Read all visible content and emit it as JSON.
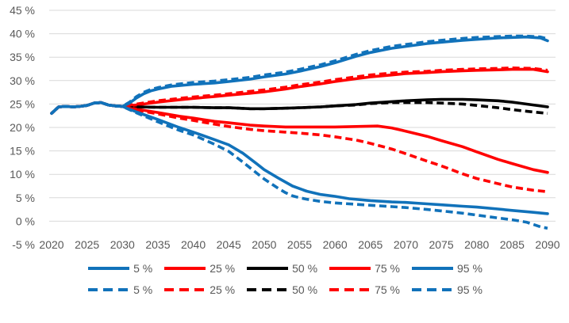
{
  "page": {
    "background": "#FFFFFF"
  },
  "chart_data": {
    "type": "line",
    "title": "",
    "xlabel": "",
    "ylabel": "",
    "grid": {
      "show": true,
      "color": "#D9D9D9",
      "levels": [
        45,
        40,
        35,
        30,
        25,
        20,
        15,
        10,
        5,
        0
      ]
    },
    "colors": {
      "blue": "#1172BA",
      "red": "#FF0000",
      "black": "#000000",
      "axis_text": "#595959"
    },
    "x_axis": {
      "min": 2020,
      "max": 2090,
      "tick_labels": [
        "2020",
        "2025",
        "2030",
        "2035",
        "2040",
        "2045",
        "2050",
        "2055",
        "2060",
        "2065",
        "2070",
        "2075",
        "2080",
        "2085",
        "2090"
      ]
    },
    "y_axis": {
      "min": -5,
      "max": 45,
      "tick_step": 5,
      "ticks": [
        {
          "v": 45,
          "label": "45 %"
        },
        {
          "v": 40,
          "label": "40 %"
        },
        {
          "v": 35,
          "label": "35 %"
        },
        {
          "v": 30,
          "label": "30 %"
        },
        {
          "v": 25,
          "label": "25 %"
        },
        {
          "v": 20,
          "label": "20 %"
        },
        {
          "v": 15,
          "label": "15 %"
        },
        {
          "v": 10,
          "label": "10 %"
        },
        {
          "v": 5,
          "label": "5 %"
        },
        {
          "v": 0,
          "label": "0 %"
        },
        {
          "v": -5,
          "label": "-5 %"
        }
      ]
    },
    "legend_position": "bottom-two-rows",
    "common_start": [
      [
        2020,
        23.0
      ],
      [
        2021,
        24.4
      ],
      [
        2022,
        24.5
      ],
      [
        2023,
        24.4
      ],
      [
        2024,
        24.5
      ],
      [
        2025,
        24.7
      ],
      [
        2026,
        25.2
      ],
      [
        2027,
        25.3
      ],
      [
        2028,
        24.8
      ],
      [
        2029,
        24.6
      ],
      [
        2030,
        24.5
      ]
    ],
    "series": [
      {
        "id": "p5_solid",
        "name": "5 %",
        "color": "#1172BA",
        "style": "solid",
        "points": [
          [
            2032,
            23.3
          ],
          [
            2035,
            21.7
          ],
          [
            2038,
            20.0
          ],
          [
            2040,
            19.0
          ],
          [
            2043,
            17.4
          ],
          [
            2045,
            16.3
          ],
          [
            2047,
            14.5
          ],
          [
            2049,
            12.2
          ],
          [
            2050,
            11.0
          ],
          [
            2052,
            9.2
          ],
          [
            2054,
            7.5
          ],
          [
            2056,
            6.4
          ],
          [
            2058,
            5.7
          ],
          [
            2060,
            5.3
          ],
          [
            2062,
            4.8
          ],
          [
            2065,
            4.4
          ],
          [
            2068,
            4.1
          ],
          [
            2070,
            4.0
          ],
          [
            2073,
            3.7
          ],
          [
            2075,
            3.5
          ],
          [
            2078,
            3.2
          ],
          [
            2080,
            3.0
          ],
          [
            2083,
            2.6
          ],
          [
            2085,
            2.3
          ],
          [
            2088,
            1.9
          ],
          [
            2090,
            1.6
          ]
        ]
      },
      {
        "id": "p25_solid",
        "name": "25 %",
        "color": "#FF0000",
        "style": "solid",
        "points": [
          [
            2032,
            23.9
          ],
          [
            2035,
            23.2
          ],
          [
            2038,
            22.4
          ],
          [
            2040,
            22.0
          ],
          [
            2043,
            21.3
          ],
          [
            2045,
            21.0
          ],
          [
            2048,
            20.5
          ],
          [
            2050,
            20.3
          ],
          [
            2053,
            20.1
          ],
          [
            2055,
            20.1
          ],
          [
            2058,
            20.1
          ],
          [
            2060,
            20.1
          ],
          [
            2063,
            20.2
          ],
          [
            2066,
            20.3
          ],
          [
            2068,
            19.9
          ],
          [
            2070,
            19.2
          ],
          [
            2073,
            18.1
          ],
          [
            2075,
            17.2
          ],
          [
            2078,
            15.9
          ],
          [
            2080,
            14.8
          ],
          [
            2083,
            13.2
          ],
          [
            2085,
            12.3
          ],
          [
            2088,
            11.0
          ],
          [
            2090,
            10.4
          ]
        ]
      },
      {
        "id": "p50_solid",
        "name": "50 %",
        "color": "#000000",
        "style": "solid",
        "points": [
          [
            2032,
            24.4
          ],
          [
            2035,
            24.3
          ],
          [
            2038,
            24.3
          ],
          [
            2040,
            24.3
          ],
          [
            2043,
            24.2
          ],
          [
            2045,
            24.2
          ],
          [
            2048,
            24.0
          ],
          [
            2050,
            24.0
          ],
          [
            2053,
            24.1
          ],
          [
            2055,
            24.2
          ],
          [
            2058,
            24.4
          ],
          [
            2060,
            24.6
          ],
          [
            2063,
            24.9
          ],
          [
            2065,
            25.2
          ],
          [
            2068,
            25.5
          ],
          [
            2070,
            25.7
          ],
          [
            2073,
            25.9
          ],
          [
            2075,
            26.0
          ],
          [
            2078,
            26.0
          ],
          [
            2080,
            25.9
          ],
          [
            2083,
            25.7
          ],
          [
            2085,
            25.4
          ],
          [
            2088,
            24.8
          ],
          [
            2090,
            24.4
          ]
        ]
      },
      {
        "id": "p75_solid",
        "name": "75 %",
        "color": "#FF0000",
        "style": "solid",
        "points": [
          [
            2032,
            24.8
          ],
          [
            2035,
            25.4
          ],
          [
            2038,
            25.9
          ],
          [
            2040,
            26.2
          ],
          [
            2043,
            26.6
          ],
          [
            2045,
            26.9
          ],
          [
            2048,
            27.3
          ],
          [
            2050,
            27.6
          ],
          [
            2053,
            28.2
          ],
          [
            2055,
            28.7
          ],
          [
            2058,
            29.3
          ],
          [
            2060,
            29.8
          ],
          [
            2063,
            30.4
          ],
          [
            2065,
            30.8
          ],
          [
            2068,
            31.2
          ],
          [
            2070,
            31.5
          ],
          [
            2073,
            31.7
          ],
          [
            2075,
            31.9
          ],
          [
            2078,
            32.1
          ],
          [
            2080,
            32.2
          ],
          [
            2083,
            32.3
          ],
          [
            2085,
            32.4
          ],
          [
            2088,
            32.4
          ],
          [
            2090,
            31.9
          ]
        ]
      },
      {
        "id": "p95_solid",
        "name": "95 %",
        "color": "#1172BA",
        "style": "solid",
        "points": [
          [
            2031,
            25.2
          ],
          [
            2032,
            26.3
          ],
          [
            2033,
            27.2
          ],
          [
            2034,
            27.8
          ],
          [
            2035,
            28.2
          ],
          [
            2037,
            28.8
          ],
          [
            2040,
            29.2
          ],
          [
            2043,
            29.5
          ],
          [
            2045,
            29.8
          ],
          [
            2048,
            30.3
          ],
          [
            2050,
            30.8
          ],
          [
            2053,
            31.4
          ],
          [
            2055,
            32.0
          ],
          [
            2058,
            33.0
          ],
          [
            2060,
            33.8
          ],
          [
            2063,
            35.2
          ],
          [
            2065,
            36.0
          ],
          [
            2068,
            36.9
          ],
          [
            2070,
            37.3
          ],
          [
            2073,
            37.9
          ],
          [
            2075,
            38.2
          ],
          [
            2078,
            38.6
          ],
          [
            2080,
            38.8
          ],
          [
            2083,
            39.1
          ],
          [
            2085,
            39.2
          ],
          [
            2087,
            39.3
          ],
          [
            2089,
            39.1
          ],
          [
            2090,
            38.5
          ]
        ]
      },
      {
        "id": "p5_dashed",
        "name": "5 %",
        "color": "#1172BA",
        "style": "dashed",
        "points": [
          [
            2032,
            23.1
          ],
          [
            2035,
            21.2
          ],
          [
            2038,
            19.4
          ],
          [
            2040,
            18.4
          ],
          [
            2043,
            16.4
          ],
          [
            2045,
            14.9
          ],
          [
            2047,
            12.6
          ],
          [
            2049,
            10.2
          ],
          [
            2050,
            9.0
          ],
          [
            2051,
            8.0
          ],
          [
            2052,
            7.0
          ],
          [
            2053,
            6.1
          ],
          [
            2054,
            5.4
          ],
          [
            2055,
            5.0
          ],
          [
            2056,
            4.7
          ],
          [
            2058,
            4.2
          ],
          [
            2060,
            3.9
          ],
          [
            2063,
            3.6
          ],
          [
            2065,
            3.4
          ],
          [
            2068,
            3.1
          ],
          [
            2070,
            2.9
          ],
          [
            2073,
            2.5
          ],
          [
            2075,
            2.2
          ],
          [
            2078,
            1.7
          ],
          [
            2080,
            1.3
          ],
          [
            2083,
            0.7
          ],
          [
            2085,
            0.3
          ],
          [
            2087,
            -0.2
          ],
          [
            2089,
            -1.2
          ],
          [
            2090,
            -1.5
          ]
        ]
      },
      {
        "id": "p25_dashed",
        "name": "25 %",
        "color": "#FF0000",
        "style": "dashed",
        "points": [
          [
            2032,
            23.7
          ],
          [
            2035,
            22.9
          ],
          [
            2038,
            22.0
          ],
          [
            2040,
            21.5
          ],
          [
            2043,
            20.7
          ],
          [
            2045,
            20.2
          ],
          [
            2048,
            19.6
          ],
          [
            2050,
            19.3
          ],
          [
            2053,
            19.0
          ],
          [
            2055,
            18.8
          ],
          [
            2058,
            18.4
          ],
          [
            2060,
            18.0
          ],
          [
            2063,
            17.3
          ],
          [
            2065,
            16.6
          ],
          [
            2068,
            15.4
          ],
          [
            2070,
            14.4
          ],
          [
            2073,
            12.8
          ],
          [
            2075,
            11.8
          ],
          [
            2078,
            10.1
          ],
          [
            2080,
            9.1
          ],
          [
            2083,
            8.0
          ],
          [
            2085,
            7.3
          ],
          [
            2088,
            6.6
          ],
          [
            2090,
            6.3
          ]
        ]
      },
      {
        "id": "p50_dashed",
        "name": "50 %",
        "color": "#000000",
        "style": "dashed",
        "points": [
          [
            2032,
            24.4
          ],
          [
            2035,
            24.3
          ],
          [
            2038,
            24.3
          ],
          [
            2040,
            24.3
          ],
          [
            2043,
            24.2
          ],
          [
            2045,
            24.2
          ],
          [
            2048,
            24.0
          ],
          [
            2050,
            24.0
          ],
          [
            2053,
            24.1
          ],
          [
            2055,
            24.2
          ],
          [
            2058,
            24.4
          ],
          [
            2060,
            24.6
          ],
          [
            2063,
            24.8
          ],
          [
            2065,
            25.1
          ],
          [
            2068,
            25.3
          ],
          [
            2070,
            25.3
          ],
          [
            2073,
            25.3
          ],
          [
            2075,
            25.2
          ],
          [
            2078,
            25.0
          ],
          [
            2080,
            24.7
          ],
          [
            2083,
            24.2
          ],
          [
            2085,
            23.8
          ],
          [
            2088,
            23.3
          ],
          [
            2090,
            23.0
          ]
        ]
      },
      {
        "id": "p75_dashed",
        "name": "75 %",
        "color": "#FF0000",
        "style": "dashed",
        "points": [
          [
            2032,
            25.0
          ],
          [
            2035,
            25.7
          ],
          [
            2038,
            26.2
          ],
          [
            2040,
            26.5
          ],
          [
            2043,
            26.9
          ],
          [
            2045,
            27.2
          ],
          [
            2048,
            27.7
          ],
          [
            2050,
            28.0
          ],
          [
            2053,
            28.6
          ],
          [
            2055,
            29.1
          ],
          [
            2058,
            29.7
          ],
          [
            2060,
            30.2
          ],
          [
            2063,
            30.8
          ],
          [
            2065,
            31.2
          ],
          [
            2068,
            31.6
          ],
          [
            2070,
            31.8
          ],
          [
            2073,
            32.0
          ],
          [
            2075,
            32.2
          ],
          [
            2078,
            32.4
          ],
          [
            2080,
            32.5
          ],
          [
            2083,
            32.6
          ],
          [
            2085,
            32.7
          ],
          [
            2088,
            32.6
          ],
          [
            2090,
            32.2
          ]
        ]
      },
      {
        "id": "p95_dashed",
        "name": "95 %",
        "color": "#1172BA",
        "style": "dashed",
        "points": [
          [
            2031,
            25.4
          ],
          [
            2032,
            26.6
          ],
          [
            2033,
            27.5
          ],
          [
            2034,
            28.1
          ],
          [
            2035,
            28.5
          ],
          [
            2037,
            29.1
          ],
          [
            2040,
            29.6
          ],
          [
            2043,
            29.9
          ],
          [
            2045,
            30.2
          ],
          [
            2048,
            30.7
          ],
          [
            2050,
            31.2
          ],
          [
            2053,
            31.8
          ],
          [
            2055,
            32.4
          ],
          [
            2058,
            33.4
          ],
          [
            2060,
            34.2
          ],
          [
            2063,
            35.6
          ],
          [
            2065,
            36.4
          ],
          [
            2068,
            37.3
          ],
          [
            2070,
            37.7
          ],
          [
            2073,
            38.3
          ],
          [
            2075,
            38.6
          ],
          [
            2078,
            39.0
          ],
          [
            2080,
            39.2
          ],
          [
            2083,
            39.4
          ],
          [
            2085,
            39.5
          ],
          [
            2087,
            39.5
          ],
          [
            2089,
            39.3
          ],
          [
            2090,
            38.9
          ]
        ]
      }
    ],
    "draw_order": [
      "p50_solid",
      "p75_solid",
      "p25_solid",
      "p50_dashed",
      "p75_dashed",
      "p25_dashed",
      "p95_solid",
      "p5_solid",
      "p95_dashed",
      "p5_dashed"
    ]
  }
}
